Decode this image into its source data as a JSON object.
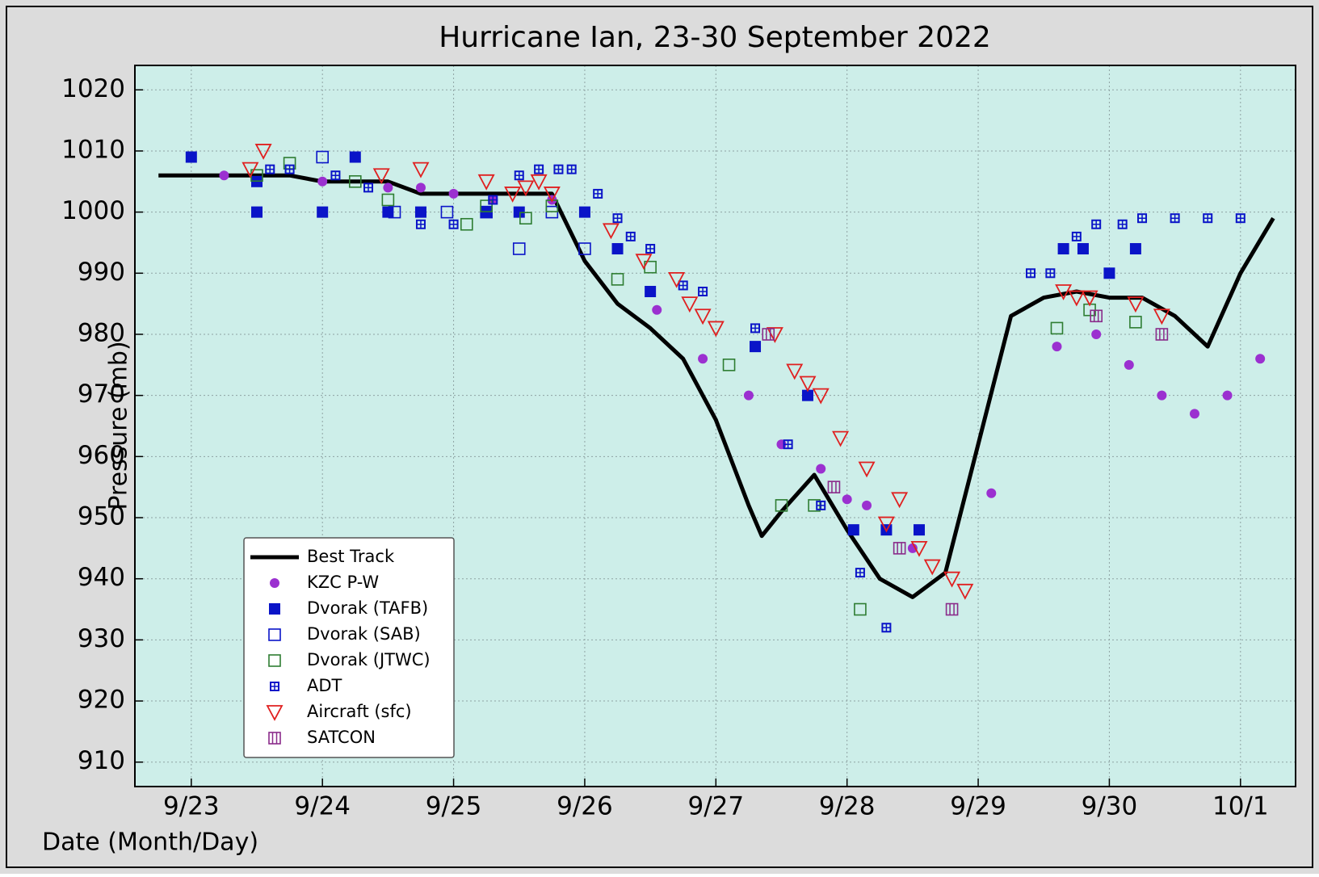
{
  "chart_data": {
    "type": "line",
    "title": "Hurricane Ian, 23-30 September 2022",
    "xlabel": "Date (Month/Day)",
    "ylabel": "Pressure (mb)",
    "xlim": [
      22.57,
      31.42
    ],
    "ylim": [
      906,
      1024
    ],
    "xticks": [
      {
        "value": 23,
        "label": "9/23"
      },
      {
        "value": 24,
        "label": "9/24"
      },
      {
        "value": 25,
        "label": "9/25"
      },
      {
        "value": 26,
        "label": "9/26"
      },
      {
        "value": 27,
        "label": "9/27"
      },
      {
        "value": 28,
        "label": "9/28"
      },
      {
        "value": 29,
        "label": "9/29"
      },
      {
        "value": 30,
        "label": "9/30"
      },
      {
        "value": 31,
        "label": "10/1"
      }
    ],
    "yticks": [
      910,
      920,
      930,
      940,
      950,
      960,
      970,
      980,
      990,
      1000,
      1010,
      1020
    ],
    "grid": true,
    "legend": "lower left",
    "series": [
      {
        "name": "Best Track",
        "color": "#000000",
        "marker": "line",
        "x": [
          22.75,
          23,
          23.25,
          23.5,
          23.75,
          24,
          24.25,
          24.5,
          24.75,
          25,
          25.25,
          25.5,
          25.75,
          26,
          26.25,
          26.5,
          26.75,
          27,
          27.25,
          27.35,
          27.5,
          27.75,
          28,
          28.25,
          28.5,
          28.75,
          29,
          29.25,
          29.5,
          29.75,
          30,
          30.25,
          30.5,
          30.75,
          31,
          31.25
        ],
        "values": [
          1006,
          1006,
          1006,
          1006,
          1006,
          1005,
          1005,
          1005,
          1003,
          1003,
          1003,
          1003,
          1003,
          992,
          985,
          981,
          976,
          966,
          952,
          947,
          951,
          957,
          948,
          940,
          937,
          941,
          962,
          983,
          986,
          987,
          986,
          986,
          983,
          978,
          990,
          999
        ]
      },
      {
        "name": "KZC P-W",
        "color": "#9b30d0",
        "marker": "circle",
        "x": [
          23.25,
          24,
          24.5,
          24.75,
          25,
          25.3,
          25.75,
          26.55,
          26.9,
          27.25,
          27.5,
          27.8,
          28,
          28.15,
          28.5,
          29.1,
          29.6,
          29.9,
          30.15,
          30.4,
          30.65,
          30.9,
          31.15
        ],
        "values": [
          1006,
          1005,
          1004,
          1004,
          1003,
          1002,
          1002,
          984,
          976,
          970,
          962,
          958,
          953,
          952,
          945,
          954,
          978,
          980,
          975,
          970,
          967,
          970,
          976
        ]
      },
      {
        "name": "Dvorak (TAFB)",
        "color": "#0a14c8",
        "marker": "square",
        "x": [
          23,
          23.5,
          23.5,
          24,
          24.25,
          24.5,
          24.75,
          25.25,
          25.5,
          26,
          26.25,
          26.5,
          27.3,
          27.7,
          28.05,
          28.3,
          28.55,
          29.65,
          29.8,
          30,
          30.2
        ],
        "values": [
          1009,
          1005,
          1000,
          1000,
          1009,
          1000,
          1000,
          1000,
          1000,
          1000,
          994,
          987,
          978,
          970,
          948,
          948,
          948,
          994,
          994,
          990,
          994
        ]
      },
      {
        "name": "Dvorak (SAB)",
        "color": "#0a14c8",
        "marker": "square-open",
        "x": [
          24,
          24.55,
          24.95,
          25.25,
          25.5,
          25.75,
          26
        ],
        "values": [
          1009,
          1000,
          1000,
          1000,
          994,
          1000,
          994
        ]
      },
      {
        "name": "Dvorak (JTWC)",
        "color": "#2e7d32",
        "marker": "square-open",
        "x": [
          23.5,
          23.75,
          24.25,
          24.5,
          25.1,
          25.25,
          25.55,
          25.75,
          26.25,
          26.5,
          27.1,
          27.5,
          27.75,
          28.1,
          29.6,
          29.85,
          30.2
        ],
        "values": [
          1006,
          1008,
          1005,
          1002,
          998,
          1001,
          999,
          1001,
          989,
          991,
          975,
          952,
          952,
          935,
          981,
          984,
          982
        ]
      },
      {
        "name": "ADT",
        "color": "#0a14c8",
        "marker": "square-plus",
        "x": [
          23.6,
          23.75,
          24.1,
          24.35,
          24.5,
          24.75,
          25,
          25.3,
          25.5,
          25.65,
          25.8,
          25.9,
          26.1,
          26.25,
          26.35,
          26.5,
          26.75,
          26.9,
          27.3,
          27.55,
          27.8,
          28.1,
          28.3,
          29.4,
          29.55,
          29.75,
          29.9,
          30.1,
          30.25,
          30.5,
          30.75,
          31
        ],
        "values": [
          1007,
          1007,
          1006,
          1004,
          1000,
          998,
          998,
          1002,
          1006,
          1007,
          1007,
          1007,
          1003,
          999,
          996,
          994,
          988,
          987,
          981,
          962,
          952,
          941,
          932,
          990,
          990,
          996,
          998,
          998,
          999,
          999,
          999,
          999
        ]
      },
      {
        "name": "Aircraft (sfc)",
        "color": "#e02020",
        "marker": "triangle-down",
        "x": [
          23.45,
          23.55,
          24.45,
          24.75,
          25.25,
          25.45,
          25.55,
          25.65,
          25.75,
          26.2,
          26.45,
          26.7,
          26.8,
          26.9,
          27,
          27.45,
          27.6,
          27.7,
          27.8,
          27.95,
          28.15,
          28.3,
          28.4,
          28.55,
          28.65,
          28.8,
          28.9,
          29.65,
          29.75,
          29.85,
          30.2,
          30.4
        ],
        "values": [
          1007,
          1010,
          1006,
          1007,
          1005,
          1003,
          1004,
          1005,
          1003,
          997,
          992,
          989,
          985,
          983,
          981,
          980,
          974,
          972,
          970,
          963,
          958,
          949,
          953,
          945,
          942,
          940,
          938,
          987,
          986,
          986,
          985,
          983
        ]
      },
      {
        "name": "SATCON",
        "color": "#8a2b8a",
        "marker": "square-bars",
        "x": [
          27.4,
          27.9,
          28.4,
          28.8,
          29.9,
          30.4
        ],
        "values": [
          980,
          955,
          945,
          935,
          983,
          980
        ]
      }
    ]
  }
}
